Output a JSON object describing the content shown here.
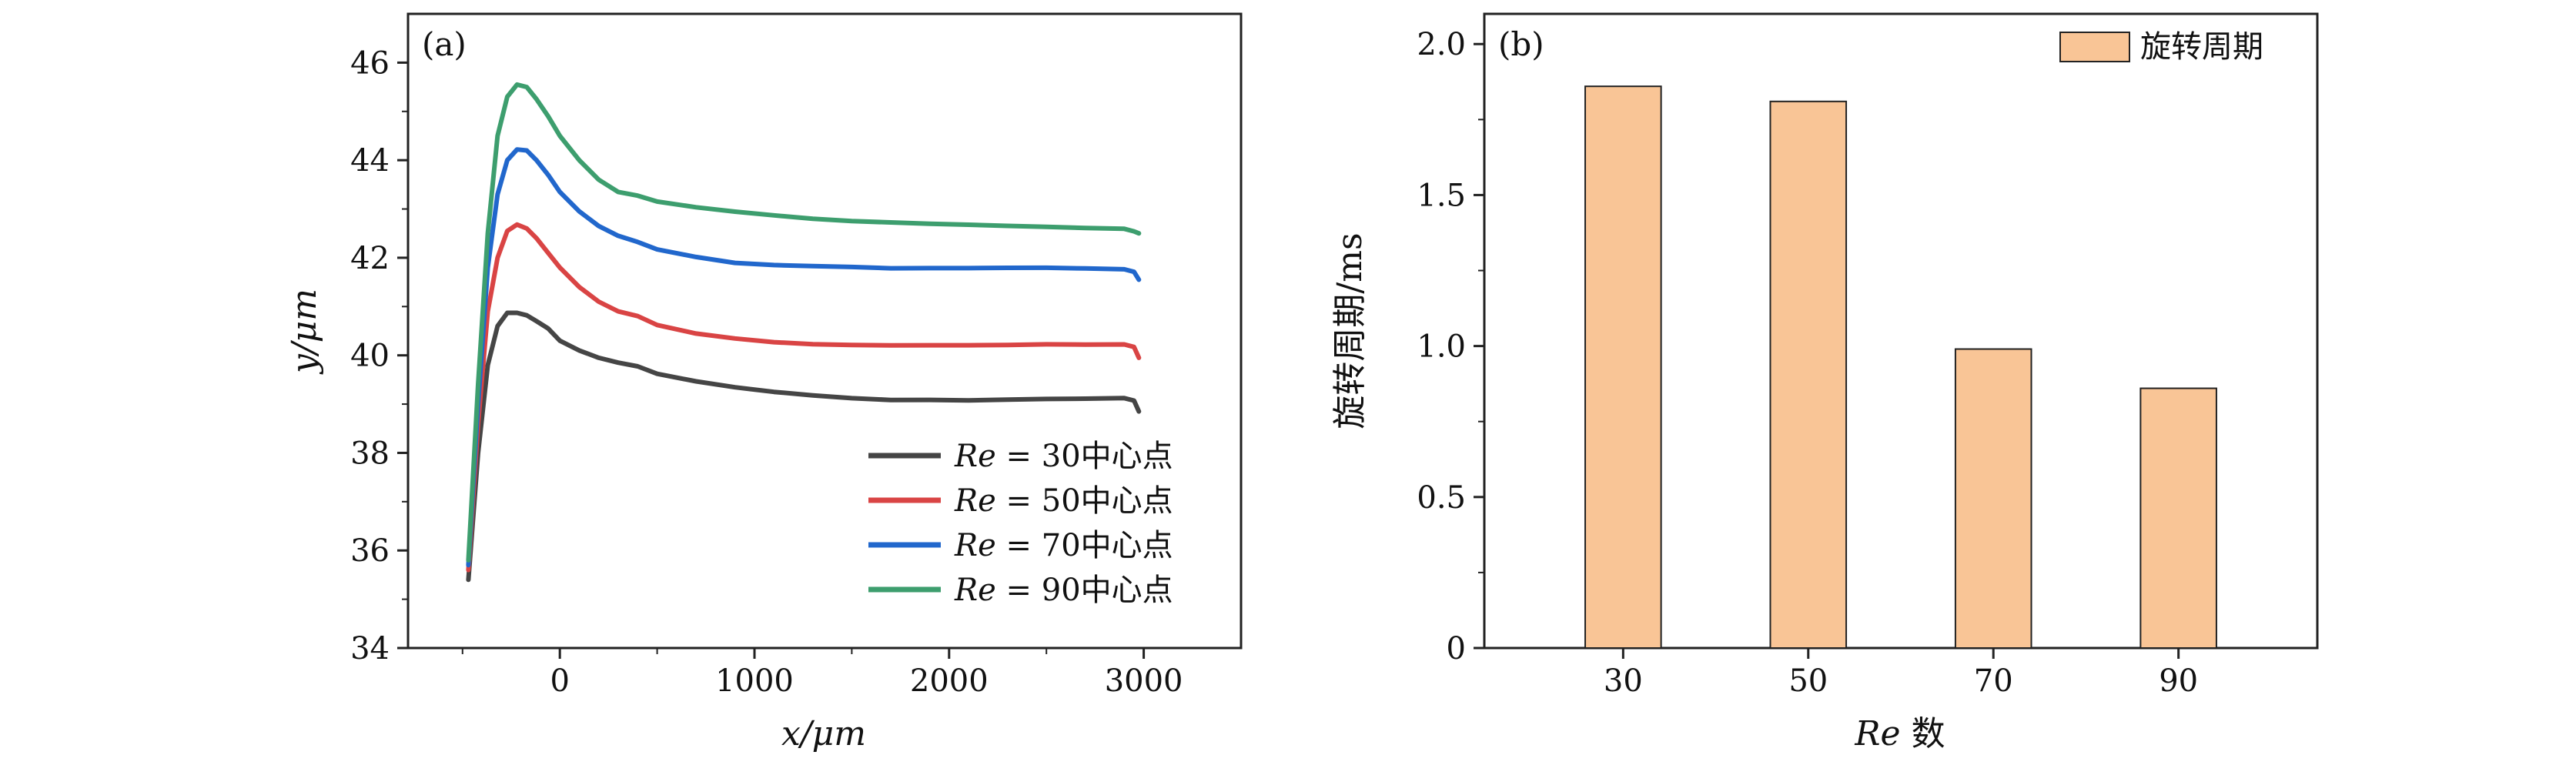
{
  "chart_data": [
    {
      "type": "line",
      "panel_label": "(a)",
      "xlabel": "x/μm",
      "ylabel": "y/μm",
      "xlim": [
        -780,
        3500
      ],
      "ylim": [
        34,
        47
      ],
      "xticks": [
        0,
        1000,
        2000,
        3000
      ],
      "xtick_labels": [
        "0",
        "1000",
        "2000",
        "3000"
      ],
      "yticks": [
        34,
        36,
        38,
        40,
        42,
        44,
        46
      ],
      "ytick_labels": [
        "34",
        "36",
        "38",
        "40",
        "42",
        "44",
        "46"
      ],
      "legend_placement": "bottom-right",
      "series": [
        {
          "name": "Re = 30中心点",
          "name_prefix": "Re",
          "name_suffix": " = 30中心点",
          "color": "#454545",
          "x": [
            -470,
            -420,
            -370,
            -320,
            -270,
            -220,
            -170,
            -120,
            -60,
            0,
            100,
            200,
            300,
            400,
            500,
            700,
            900,
            1100,
            1300,
            1500,
            1700,
            1900,
            2100,
            2300,
            2500,
            2700,
            2900,
            2950,
            2975
          ],
          "y": [
            35.4,
            38.0,
            39.8,
            40.6,
            40.87,
            40.87,
            40.82,
            40.7,
            40.55,
            40.3,
            40.1,
            39.95,
            39.85,
            39.75,
            39.65,
            39.5,
            39.38,
            39.28,
            39.2,
            39.13,
            39.08,
            39.07,
            39.05,
            39.06,
            39.07,
            39.08,
            39.1,
            39.1,
            38.85
          ]
        },
        {
          "name": "Re = 50中心点",
          "name_prefix": "Re",
          "name_suffix": " = 50中心点",
          "color": "#d94444",
          "x": [
            -470,
            -420,
            -370,
            -320,
            -270,
            -220,
            -170,
            -120,
            -60,
            0,
            100,
            200,
            300,
            400,
            500,
            700,
            900,
            1100,
            1300,
            1500,
            1700,
            1900,
            2100,
            2300,
            2500,
            2700,
            2900,
            2950,
            2975
          ],
          "y": [
            35.6,
            38.6,
            40.9,
            42.0,
            42.55,
            42.68,
            42.6,
            42.4,
            42.1,
            41.8,
            41.4,
            41.1,
            40.9,
            40.78,
            40.65,
            40.48,
            40.38,
            40.3,
            40.25,
            40.22,
            40.2,
            40.19,
            40.18,
            40.18,
            40.19,
            40.19,
            40.2,
            40.2,
            39.95
          ]
        },
        {
          "name": "Re = 70中心点",
          "name_prefix": "Re",
          "name_suffix": " = 70中心点",
          "color": "#2167cc",
          "x": [
            -470,
            -420,
            -370,
            -320,
            -270,
            -220,
            -170,
            -120,
            -60,
            0,
            100,
            200,
            300,
            400,
            500,
            700,
            900,
            1100,
            1300,
            1500,
            1700,
            1900,
            2100,
            2300,
            2500,
            2700,
            2900,
            2950,
            2975
          ],
          "y": [
            35.7,
            39.0,
            41.8,
            43.3,
            44.0,
            44.22,
            44.2,
            44.0,
            43.7,
            43.35,
            42.95,
            42.65,
            42.45,
            42.3,
            42.2,
            42.05,
            41.93,
            41.88,
            41.85,
            41.82,
            41.78,
            41.77,
            41.76,
            41.76,
            41.76,
            41.75,
            41.74,
            41.74,
            41.55
          ]
        },
        {
          "name": "Re = 90中心点",
          "name_prefix": "Re",
          "name_suffix": " = 90中心点",
          "color": "#3d9e6e",
          "x": [
            -470,
            -420,
            -370,
            -320,
            -270,
            -220,
            -170,
            -120,
            -60,
            0,
            100,
            200,
            300,
            400,
            500,
            700,
            900,
            1100,
            1300,
            1500,
            1700,
            1900,
            2100,
            2300,
            2500,
            2700,
            2900,
            2950,
            2975
          ],
          "y": [
            35.8,
            39.4,
            42.5,
            44.5,
            45.3,
            45.55,
            45.5,
            45.25,
            44.9,
            44.5,
            44.0,
            43.6,
            43.35,
            43.25,
            43.18,
            43.07,
            42.98,
            42.9,
            42.82,
            42.76,
            42.72,
            42.68,
            42.65,
            42.62,
            42.6,
            42.58,
            42.57,
            42.57,
            42.5
          ]
        }
      ]
    },
    {
      "type": "bar",
      "panel_label": "(b)",
      "xlabel_prefix": "Re",
      "xlabel_suffix": " 数",
      "ylabel": "旋转周期/ms",
      "ylim": [
        0,
        2.1
      ],
      "yticks": [
        0,
        0.5,
        1.0,
        1.5,
        2.0
      ],
      "ytick_labels": [
        "0",
        "0.5",
        "1.0",
        "1.5",
        "2.0"
      ],
      "categories": [
        "30",
        "50",
        "70",
        "90"
      ],
      "series": [
        {
          "name": "旋转周期",
          "color": "#f9c596",
          "values": [
            1.86,
            1.81,
            0.99,
            0.86
          ]
        }
      ],
      "legend_placement": "top-right"
    }
  ]
}
